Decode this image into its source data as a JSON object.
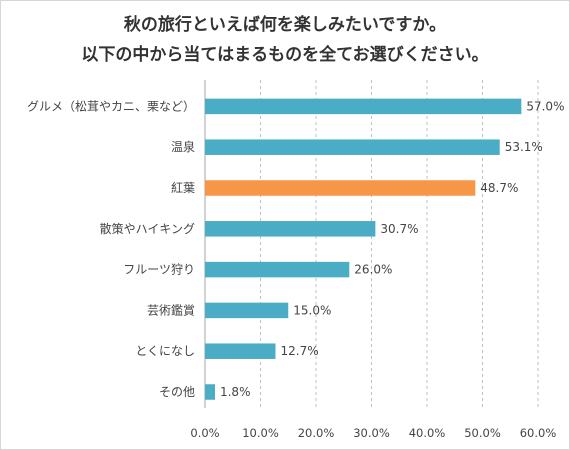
{
  "chart_data": {
    "type": "bar",
    "orientation": "horizontal",
    "title_lines": [
      "秋の旅行といえば何を楽しみたいですか。",
      "以下の中から当てはまるものを全てお選びください。"
    ],
    "categories": [
      "グルメ（松茸やカニ、栗など）",
      "温泉",
      "紅葉",
      "散策やハイキング",
      "フルーツ狩り",
      "芸術鑑賞",
      "とくになし",
      "その他"
    ],
    "values": [
      57.0,
      53.1,
      48.7,
      30.7,
      26.0,
      15.0,
      12.7,
      1.8
    ],
    "value_labels": [
      "57.0%",
      "53.1%",
      "48.7%",
      "30.7%",
      "26.0%",
      "15.0%",
      "12.7%",
      "1.8%"
    ],
    "highlight_index": 2,
    "xlim": [
      0,
      60
    ],
    "x_ticks": [
      "0.0%",
      "10.0%",
      "20.0%",
      "30.0%",
      "40.0%",
      "50.0%",
      "60.0%"
    ],
    "grid": "vertical dashed",
    "colors": {
      "bar": "#4bacc6",
      "highlight": "#f79646"
    }
  }
}
